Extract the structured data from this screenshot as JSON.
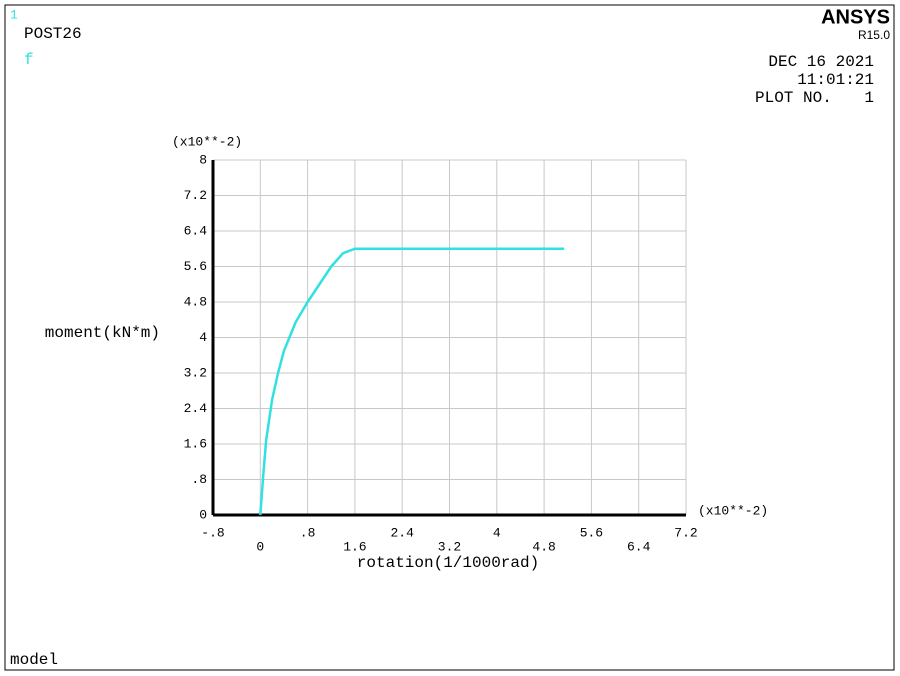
{
  "header": {
    "window_number": "1",
    "program": "POST26",
    "brand": "ANSYS",
    "version": "R15.0",
    "date": "DEC 16 2021",
    "time": "11:01:21",
    "plot_label": "PLOT NO.",
    "plot_number": "1",
    "footer": "model"
  },
  "chart_data": {
    "type": "line",
    "x_label": "rotation(1/1000rad)",
    "y_label": "moment(kN*m)",
    "x_multiplier": "(x10**-2)",
    "y_multiplier": "(x10**-2)",
    "x": [
      0,
      0.05,
      0.1,
      0.2,
      0.3,
      0.4,
      0.6,
      0.8,
      1.0,
      1.2,
      1.4,
      1.6,
      2.4,
      3.2,
      4.0,
      4.8,
      5.14
    ],
    "series": [
      {
        "name": "f",
        "color": "#33e0e0",
        "values": [
          0,
          0.9,
          1.7,
          2.6,
          3.2,
          3.7,
          4.35,
          4.8,
          5.2,
          5.6,
          5.9,
          6.0,
          6.0,
          6.0,
          6.0,
          6.0,
          6.0
        ]
      }
    ],
    "xlim": [
      -0.8,
      7.2
    ],
    "xticks": [
      {
        "value": -0.8,
        "label": "-.8"
      },
      0,
      {
        "value": 0.8,
        "label": ".8"
      },
      1.6,
      2.4,
      3.2,
      4,
      4.8,
      5.6,
      6.4,
      7.2
    ],
    "ylim": [
      0,
      8
    ],
    "yticks": [
      0,
      {
        "value": 0.8,
        "label": ".8"
      },
      1.6,
      2.4,
      3.2,
      4,
      4.8,
      5.6,
      6.4,
      7.2,
      8
    ],
    "grid": true
  }
}
